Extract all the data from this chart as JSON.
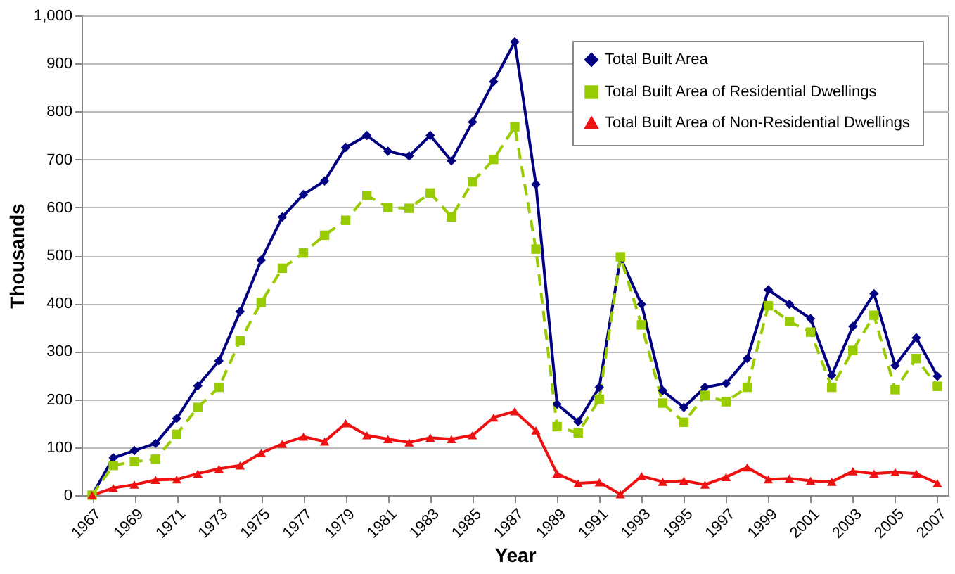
{
  "chart_data": {
    "type": "line",
    "xlabel": "Year",
    "ylabel": "Thousands",
    "x": [
      1967,
      1968,
      1969,
      1970,
      1971,
      1972,
      1973,
      1974,
      1975,
      1976,
      1977,
      1978,
      1979,
      1980,
      1981,
      1982,
      1983,
      1984,
      1985,
      1986,
      1987,
      1988,
      1989,
      1990,
      1991,
      1992,
      1993,
      1994,
      1995,
      1996,
      1997,
      1998,
      1999,
      2000,
      2001,
      2002,
      2003,
      2004,
      2005,
      2006,
      2007
    ],
    "series": [
      {
        "name": "Total Built Area",
        "color": "#000080",
        "marker": "diamond",
        "line_style": "solid",
        "values": [
          0,
          78,
          93,
          108,
          160,
          228,
          280,
          383,
          490,
          580,
          627,
          655,
          725,
          750,
          717,
          707,
          750,
          697,
          778,
          862,
          945,
          648,
          190,
          153,
          225,
          495,
          398,
          218,
          183,
          225,
          233,
          285,
          428,
          398,
          368,
          250,
          352,
          420,
          270,
          328,
          248
        ]
      },
      {
        "name": "Total Built Area of Residential Dwellings",
        "color": "#99cc00",
        "marker": "square",
        "line_style": "dashed",
        "values": [
          0,
          62,
          70,
          75,
          127,
          183,
          225,
          322,
          402,
          473,
          505,
          542,
          573,
          625,
          600,
          598,
          630,
          580,
          653,
          700,
          768,
          513,
          143,
          130,
          200,
          497,
          355,
          192,
          152,
          208,
          195,
          225,
          395,
          362,
          340,
          225,
          302,
          375,
          220,
          285,
          227
        ]
      },
      {
        "name": "Total Built Area of Non-Residential Dwellings",
        "color": "#ee1111",
        "marker": "triangle",
        "line_style": "solid",
        "values": [
          0,
          15,
          22,
          32,
          33,
          45,
          55,
          62,
          88,
          107,
          122,
          112,
          150,
          125,
          117,
          110,
          120,
          117,
          125,
          162,
          175,
          135,
          45,
          25,
          27,
          2,
          40,
          28,
          30,
          22,
          38,
          58,
          33,
          35,
          30,
          28,
          50,
          45,
          48,
          45,
          25
        ]
      }
    ],
    "xlim": [
      1966.5,
      2007.5
    ],
    "xticks": [
      1967,
      1969,
      1971,
      1973,
      1975,
      1977,
      1979,
      1981,
      1983,
      1985,
      1987,
      1989,
      1991,
      1993,
      1995,
      1997,
      1999,
      2001,
      2003,
      2005,
      2007
    ],
    "ylim": [
      0,
      1000
    ],
    "yticks": [
      0,
      {
        "value": 100,
        "label": "100"
      },
      200,
      300,
      400,
      500,
      600,
      700,
      800,
      900,
      {
        "value": 1000,
        "label": "1,000"
      }
    ],
    "grid": "y",
    "legend": "top right"
  }
}
